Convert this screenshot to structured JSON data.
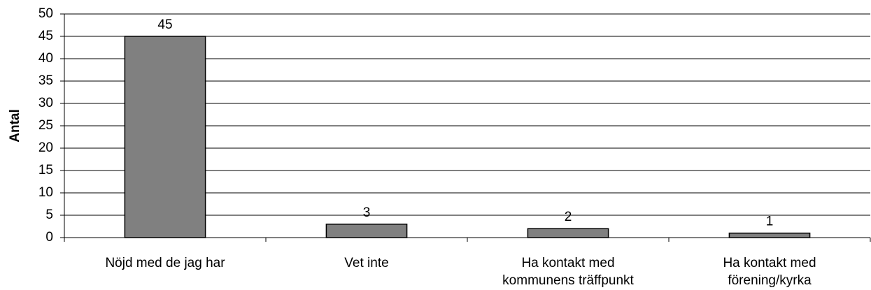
{
  "chart_data": {
    "type": "bar",
    "y_label": "Antal",
    "categories": [
      [
        "Nöjd med de jag har"
      ],
      [
        "Vet inte"
      ],
      [
        "Ha kontakt med",
        "kommunens träffpunkt"
      ],
      [
        "Ha kontakt med",
        "förening/kyrka"
      ]
    ],
    "values": [
      45,
      3,
      2,
      1
    ],
    "color": "#808080",
    "ylim": [
      0,
      50
    ],
    "yticks": [
      0,
      5,
      10,
      15,
      20,
      25,
      30,
      35,
      40,
      45,
      50
    ],
    "grid": true
  }
}
